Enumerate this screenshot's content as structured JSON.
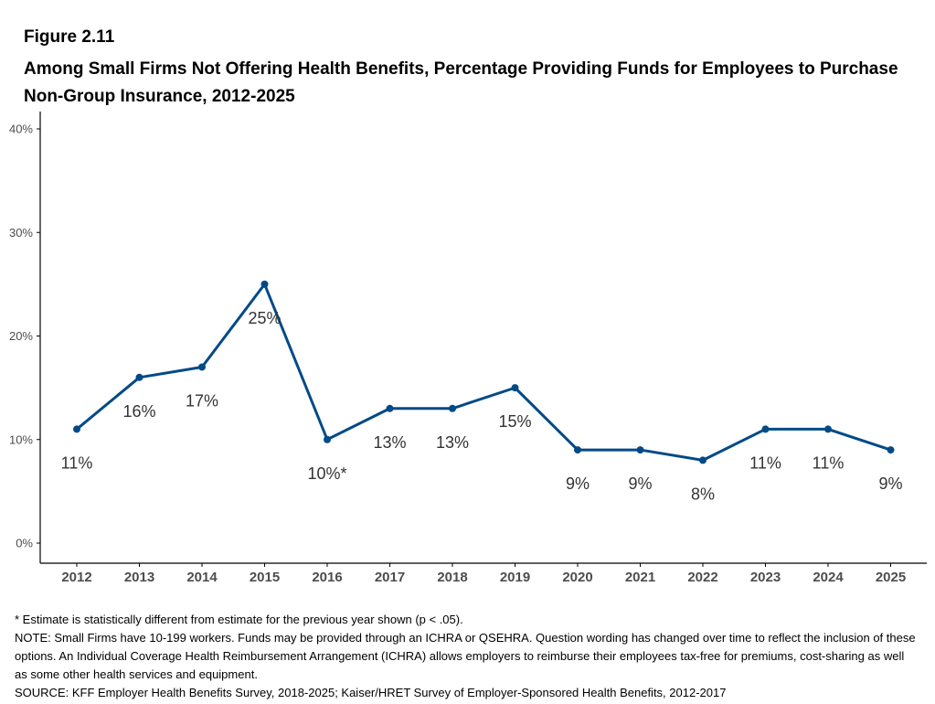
{
  "figure_label": "Figure 2.11",
  "figure_title": "Among Small Firms Not Offering Health Benefits, Percentage Providing Funds for Employees to Purchase Non-Group Insurance, 2012-2025",
  "colors": {
    "line": "#004a87",
    "axis": "#000000",
    "tick_text": "#4d4d4d",
    "label_text": "#333333"
  },
  "chart_data": {
    "type": "line",
    "title": "Among Small Firms Not Offering Health Benefits, Percentage Providing Funds for Employees to Purchase Non-Group Insurance, 2012-2025",
    "x": [
      "2012",
      "2013",
      "2014",
      "2015",
      "2016",
      "2017",
      "2018",
      "2019",
      "2020",
      "2021",
      "2022",
      "2023",
      "2024",
      "2025"
    ],
    "series": [
      {
        "values": [
          11,
          16,
          17,
          25,
          10,
          13,
          13,
          15,
          9,
          9,
          8,
          11,
          11,
          9
        ],
        "labels": [
          "11%",
          "16%",
          "17%",
          "25%",
          "10%*",
          "13%",
          "13%",
          "15%",
          "9%",
          "9%",
          "8%",
          "11%",
          "11%",
          "9%"
        ]
      }
    ],
    "ylim": [
      0,
      40
    ],
    "yticks": [
      0,
      10,
      20,
      30,
      40
    ],
    "ytick_labels": [
      "0%",
      "10%",
      "20%",
      "30%",
      "40%"
    ],
    "xlabel": "",
    "ylabel": "",
    "grid": false
  },
  "notes": [
    "* Estimate is statistically different from estimate for the previous year shown (p < .05).",
    "NOTE: Small Firms have 10-199 workers. Funds may be provided through an ICHRA or QSEHRA. Question wording has changed over time to reflect the inclusion of these options. An Individual Coverage Health Reimbursement Arrangement (ICHRA) allows employers to reimburse their employees tax-free for premiums, cost-sharing as well as some other health services and equipment.",
    "SOURCE: KFF Employer Health Benefits Survey, 2018-2025; Kaiser/HRET Survey of Employer-Sponsored Health Benefits, 2012-2017"
  ]
}
